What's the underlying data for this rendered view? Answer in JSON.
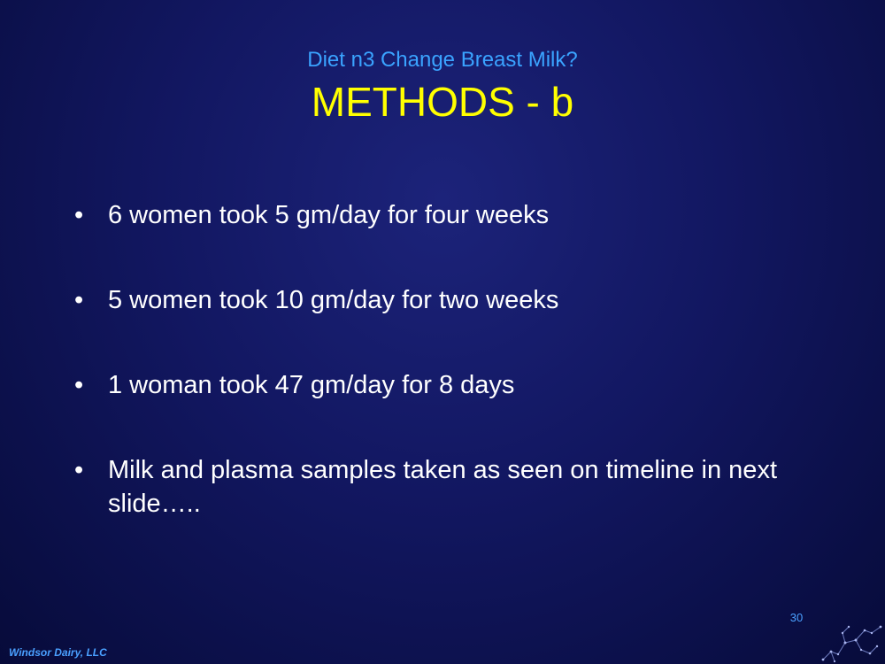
{
  "slide": {
    "subtitle": "Diet n3 Change Breast Milk?",
    "title": "METHODS - b",
    "bullets": [
      {
        "marker": "•",
        "text": "6 women took 5 gm/day for four weeks"
      },
      {
        "marker": "•",
        "text": "5 women took 10 gm/day for two weeks"
      },
      {
        "marker": "•",
        "text": "1 woman took 47 gm/day for 8 days"
      },
      {
        "marker": "•",
        "text": "Milk and plasma samples taken as seen on timeline in next slide….."
      }
    ],
    "page_number": "30",
    "footer": "Windsor Dairy, LLC",
    "corner_logo_icon": "constellation-logo-icon"
  },
  "colors": {
    "subtitle": "#3aa3ff",
    "title": "#ffff00",
    "body_text": "#ffffff",
    "footer": "#4aa0ff",
    "background": "#121761"
  }
}
